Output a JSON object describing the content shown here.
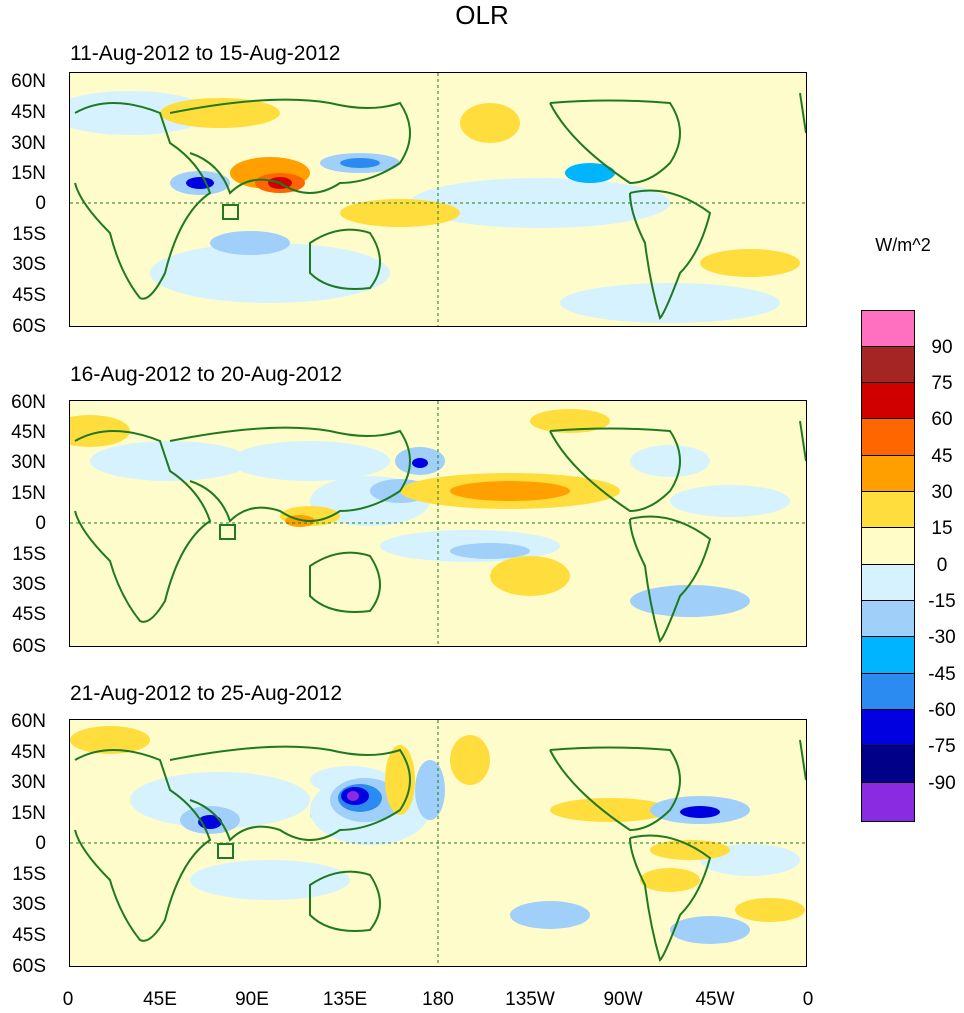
{
  "title": "OLR",
  "panels": [
    {
      "date_range": "11-Aug-2012 to 15-Aug-2012"
    },
    {
      "date_range": "16-Aug-2012 to 20-Aug-2012"
    },
    {
      "date_range": "21-Aug-2012 to 25-Aug-2012"
    }
  ],
  "lat_labels": [
    "60N",
    "45N",
    "30N",
    "15N",
    "0",
    "15S",
    "30S",
    "45S",
    "60S"
  ],
  "lon_labels": [
    "0",
    "45E",
    "90E",
    "135E",
    "180",
    "135W",
    "90W",
    "45W",
    "0"
  ],
  "units": "W/m^2",
  "colorbar": {
    "labels": [
      "90",
      "75",
      "60",
      "45",
      "30",
      "15",
      "0",
      "-15",
      "-30",
      "-45",
      "-60",
      "-75",
      "-90"
    ],
    "colors": [
      "#ff70c0",
      "#a52424",
      "#d10000",
      "#ff6600",
      "#ffa000",
      "#ffdd3c",
      "#fffcc8",
      "#d6f2ff",
      "#a0cffa",
      "#00b4ff",
      "#2b8bf0",
      "#0000e0",
      "#000088",
      "#8a2be2"
    ]
  },
  "map_colors": {
    "coast": "#1f7a1f",
    "base": "#fffccb"
  }
}
